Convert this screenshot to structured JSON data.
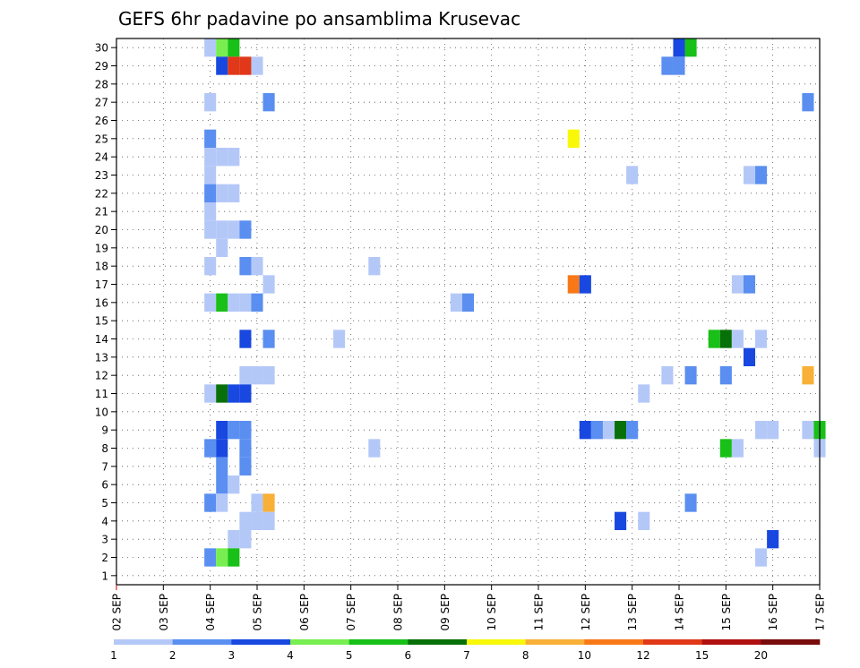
{
  "chart_data": {
    "type": "heatmap",
    "title": "GEFS 6hr padavine po ansamblima Krusevac",
    "x_tick_labels": [
      "02 SEP",
      "03 SEP",
      "04 SEP",
      "05 SEP",
      "06 SEP",
      "07 SEP",
      "08 SEP",
      "09 SEP",
      "10 SEP",
      "11 SEP",
      "12 SEP",
      "13 SEP",
      "14 SEP",
      "15 SEP",
      "16 SEP",
      "17 SEP"
    ],
    "y_tick_labels": [
      "1",
      "2",
      "3",
      "4",
      "5",
      "6",
      "7",
      "8",
      "9",
      "10",
      "11",
      "12",
      "13",
      "14",
      "15",
      "16",
      "17",
      "18",
      "19",
      "20",
      "21",
      "22",
      "23",
      "24",
      "25",
      "26",
      "27",
      "28",
      "29",
      "30"
    ],
    "x_unit": "6-hour step from 02 SEP",
    "xlim": [
      0,
      60
    ],
    "ylim": [
      0.5,
      30.5
    ],
    "grid": true,
    "legend": {
      "placement": "bottom",
      "labels": [
        "1",
        "2",
        "3",
        "4",
        "5",
        "6",
        "7",
        "8",
        "10",
        "12",
        "15",
        "20"
      ],
      "colors": [
        "#b4c8f8",
        "#5a8ef0",
        "#1848e0",
        "#78ee50",
        "#18c018",
        "#087008",
        "#f8f808",
        "#f8b038",
        "#f87818",
        "#e03818",
        "#b01010",
        "#780c0c"
      ]
    },
    "cells": [
      {
        "t": 8,
        "member": 30,
        "level": 0
      },
      {
        "t": 9,
        "member": 30,
        "level": 3
      },
      {
        "t": 10,
        "member": 30,
        "level": 4
      },
      {
        "t": 48,
        "member": 30,
        "level": 2
      },
      {
        "t": 49,
        "member": 30,
        "level": 4
      },
      {
        "t": 9,
        "member": 29,
        "level": 2
      },
      {
        "t": 10,
        "member": 29,
        "level": 9
      },
      {
        "t": 11,
        "member": 29,
        "level": 9
      },
      {
        "t": 12,
        "member": 29,
        "level": 0
      },
      {
        "t": 47,
        "member": 29,
        "level": 1
      },
      {
        "t": 48,
        "member": 29,
        "level": 1
      },
      {
        "t": 8,
        "member": 27,
        "level": 0
      },
      {
        "t": 13,
        "member": 27,
        "level": 1
      },
      {
        "t": 59,
        "member": 27,
        "level": 1
      },
      {
        "t": 8,
        "member": 25,
        "level": 1
      },
      {
        "t": 39,
        "member": 25,
        "level": 6
      },
      {
        "t": 8,
        "member": 24,
        "level": 0
      },
      {
        "t": 9,
        "member": 24,
        "level": 0
      },
      {
        "t": 10,
        "member": 24,
        "level": 0
      },
      {
        "t": 8,
        "member": 23,
        "level": 0
      },
      {
        "t": 44,
        "member": 23,
        "level": 0
      },
      {
        "t": 54,
        "member": 23,
        "level": 0
      },
      {
        "t": 55,
        "member": 23,
        "level": 1
      },
      {
        "t": 8,
        "member": 22,
        "level": 1
      },
      {
        "t": 9,
        "member": 22,
        "level": 0
      },
      {
        "t": 10,
        "member": 22,
        "level": 0
      },
      {
        "t": 8,
        "member": 21,
        "level": 0
      },
      {
        "t": 8,
        "member": 20,
        "level": 0
      },
      {
        "t": 9,
        "member": 20,
        "level": 0
      },
      {
        "t": 10,
        "member": 20,
        "level": 0
      },
      {
        "t": 11,
        "member": 20,
        "level": 1
      },
      {
        "t": 9,
        "member": 19,
        "level": 0
      },
      {
        "t": 8,
        "member": 18,
        "level": 0
      },
      {
        "t": 11,
        "member": 18,
        "level": 1
      },
      {
        "t": 12,
        "member": 18,
        "level": 0
      },
      {
        "t": 22,
        "member": 18,
        "level": 0
      },
      {
        "t": 13,
        "member": 17,
        "level": 0
      },
      {
        "t": 39,
        "member": 17,
        "level": 8
      },
      {
        "t": 40,
        "member": 17,
        "level": 2
      },
      {
        "t": 53,
        "member": 17,
        "level": 0
      },
      {
        "t": 54,
        "member": 17,
        "level": 1
      },
      {
        "t": 8,
        "member": 16,
        "level": 0
      },
      {
        "t": 9,
        "member": 16,
        "level": 4
      },
      {
        "t": 10,
        "member": 16,
        "level": 0
      },
      {
        "t": 11,
        "member": 16,
        "level": 0
      },
      {
        "t": 12,
        "member": 16,
        "level": 1
      },
      {
        "t": 29,
        "member": 16,
        "level": 0
      },
      {
        "t": 30,
        "member": 16,
        "level": 1
      },
      {
        "t": 11,
        "member": 14,
        "level": 2
      },
      {
        "t": 13,
        "member": 14,
        "level": 1
      },
      {
        "t": 19,
        "member": 14,
        "level": 0
      },
      {
        "t": 51,
        "member": 14,
        "level": 4
      },
      {
        "t": 52,
        "member": 14,
        "level": 5
      },
      {
        "t": 53,
        "member": 14,
        "level": 0
      },
      {
        "t": 55,
        "member": 14,
        "level": 0
      },
      {
        "t": 54,
        "member": 13,
        "level": 2
      },
      {
        "t": 11,
        "member": 12,
        "level": 0
      },
      {
        "t": 12,
        "member": 12,
        "level": 0
      },
      {
        "t": 13,
        "member": 12,
        "level": 0
      },
      {
        "t": 47,
        "member": 12,
        "level": 0
      },
      {
        "t": 49,
        "member": 12,
        "level": 1
      },
      {
        "t": 52,
        "member": 12,
        "level": 1
      },
      {
        "t": 59,
        "member": 12,
        "level": 7
      },
      {
        "t": 8,
        "member": 11,
        "level": 0
      },
      {
        "t": 9,
        "member": 11,
        "level": 5
      },
      {
        "t": 10,
        "member": 11,
        "level": 2
      },
      {
        "t": 11,
        "member": 11,
        "level": 2
      },
      {
        "t": 45,
        "member": 11,
        "level": 0
      },
      {
        "t": 9,
        "member": 9,
        "level": 2
      },
      {
        "t": 10,
        "member": 9,
        "level": 1
      },
      {
        "t": 11,
        "member": 9,
        "level": 1
      },
      {
        "t": 40,
        "member": 9,
        "level": 2
      },
      {
        "t": 41,
        "member": 9,
        "level": 1
      },
      {
        "t": 42,
        "member": 9,
        "level": 0
      },
      {
        "t": 43,
        "member": 9,
        "level": 5
      },
      {
        "t": 44,
        "member": 9,
        "level": 1
      },
      {
        "t": 55,
        "member": 9,
        "level": 0
      },
      {
        "t": 56,
        "member": 9,
        "level": 0
      },
      {
        "t": 59,
        "member": 9,
        "level": 0
      },
      {
        "t": 60,
        "member": 9,
        "level": 4
      },
      {
        "t": 8,
        "member": 8,
        "level": 1
      },
      {
        "t": 9,
        "member": 8,
        "level": 2
      },
      {
        "t": 11,
        "member": 8,
        "level": 1
      },
      {
        "t": 22,
        "member": 8,
        "level": 0
      },
      {
        "t": 52,
        "member": 8,
        "level": 4
      },
      {
        "t": 53,
        "member": 8,
        "level": 0
      },
      {
        "t": 60,
        "member": 8,
        "level": 0
      },
      {
        "t": 9,
        "member": 7,
        "level": 1
      },
      {
        "t": 11,
        "member": 7,
        "level": 1
      },
      {
        "t": 9,
        "member": 6,
        "level": 1
      },
      {
        "t": 10,
        "member": 6,
        "level": 0
      },
      {
        "t": 8,
        "member": 5,
        "level": 1
      },
      {
        "t": 9,
        "member": 5,
        "level": 0
      },
      {
        "t": 12,
        "member": 5,
        "level": 0
      },
      {
        "t": 13,
        "member": 5,
        "level": 7
      },
      {
        "t": 49,
        "member": 5,
        "level": 1
      },
      {
        "t": 11,
        "member": 4,
        "level": 0
      },
      {
        "t": 12,
        "member": 4,
        "level": 0
      },
      {
        "t": 13,
        "member": 4,
        "level": 0
      },
      {
        "t": 43,
        "member": 4,
        "level": 2
      },
      {
        "t": 45,
        "member": 4,
        "level": 0
      },
      {
        "t": 10,
        "member": 3,
        "level": 0
      },
      {
        "t": 11,
        "member": 3,
        "level": 0
      },
      {
        "t": 56,
        "member": 3,
        "level": 2
      },
      {
        "t": 8,
        "member": 2,
        "level": 1
      },
      {
        "t": 9,
        "member": 2,
        "level": 3
      },
      {
        "t": 10,
        "member": 2,
        "level": 4
      },
      {
        "t": 55,
        "member": 2,
        "level": 0
      }
    ]
  }
}
